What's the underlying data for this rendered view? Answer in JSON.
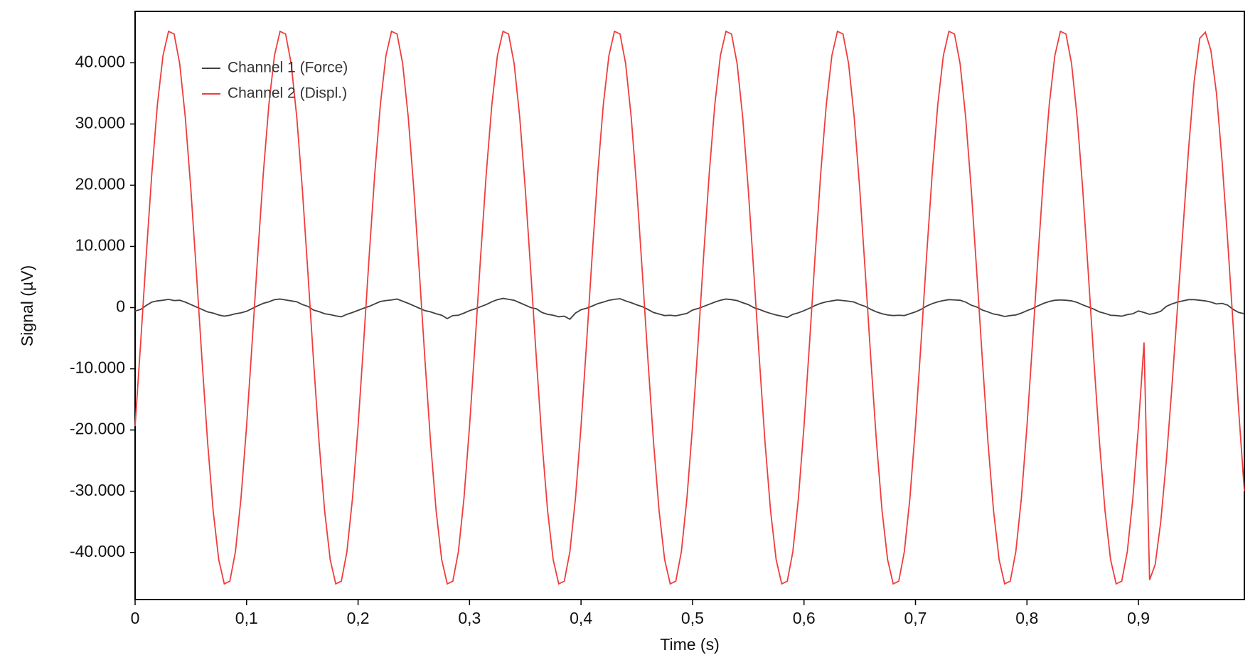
{
  "chart_data": {
    "type": "line",
    "x_label": "Time (s)",
    "y_label": "Signal (µV)",
    "x": [
      0,
      0.005,
      0.01,
      0.015,
      0.02,
      0.025,
      0.03,
      0.035,
      0.04,
      0.045,
      0.05,
      0.055,
      0.06,
      0.065,
      0.07,
      0.075,
      0.08,
      0.085,
      0.09,
      0.095,
      0.1,
      0.105,
      0.11,
      0.115,
      0.12,
      0.125,
      0.13,
      0.135,
      0.14,
      0.145,
      0.15,
      0.155,
      0.16,
      0.165,
      0.17,
      0.175,
      0.18,
      0.185,
      0.19,
      0.195,
      0.2,
      0.205,
      0.21,
      0.215,
      0.22,
      0.225,
      0.23,
      0.235,
      0.24,
      0.245,
      0.25,
      0.255,
      0.26,
      0.265,
      0.27,
      0.275,
      0.28,
      0.285,
      0.29,
      0.295,
      0.3,
      0.305,
      0.31,
      0.315,
      0.32,
      0.325,
      0.33,
      0.335,
      0.34,
      0.345,
      0.35,
      0.355,
      0.36,
      0.365,
      0.37,
      0.375,
      0.38,
      0.385,
      0.39,
      0.395,
      0.4,
      0.405,
      0.41,
      0.415,
      0.42,
      0.425,
      0.43,
      0.435,
      0.44,
      0.445,
      0.45,
      0.455,
      0.46,
      0.465,
      0.47,
      0.475,
      0.48,
      0.485,
      0.49,
      0.495,
      0.5,
      0.505,
      0.51,
      0.515,
      0.52,
      0.525,
      0.53,
      0.535,
      0.54,
      0.545,
      0.55,
      0.555,
      0.56,
      0.565,
      0.57,
      0.575,
      0.58,
      0.585,
      0.59,
      0.595,
      0.6,
      0.605,
      0.61,
      0.615,
      0.62,
      0.625,
      0.63,
      0.635,
      0.64,
      0.645,
      0.65,
      0.655,
      0.66,
      0.665,
      0.67,
      0.675,
      0.68,
      0.685,
      0.69,
      0.695,
      0.7,
      0.705,
      0.71,
      0.715,
      0.72,
      0.725,
      0.73,
      0.735,
      0.74,
      0.745,
      0.75,
      0.755,
      0.76,
      0.765,
      0.77,
      0.775,
      0.78,
      0.785,
      0.79,
      0.795,
      0.8,
      0.805,
      0.81,
      0.815,
      0.82,
      0.825,
      0.83,
      0.835,
      0.84,
      0.845,
      0.85,
      0.855,
      0.86,
      0.865,
      0.87,
      0.875,
      0.88,
      0.885,
      0.89,
      0.895,
      0.9,
      0.905,
      0.91,
      0.915,
      0.92,
      0.925,
      0.93,
      0.935,
      0.94,
      0.945,
      0.95,
      0.955,
      0.96,
      0.965,
      0.97,
      0.975,
      0.98,
      0.985,
      0.99,
      0.995
    ],
    "series": [
      {
        "name": "Channel 1 (Force)",
        "color": "#404040",
        "values": [
          -550,
          -300,
          350,
          900,
          1100,
          1200,
          1350,
          1150,
          1200,
          900,
          500,
          100,
          -300,
          -700,
          -900,
          -1200,
          -1400,
          -1250,
          -1000,
          -850,
          -600,
          -150,
          300,
          700,
          950,
          1300,
          1400,
          1250,
          1100,
          950,
          500,
          200,
          -400,
          -650,
          -1000,
          -1150,
          -1350,
          -1500,
          -1100,
          -800,
          -450,
          -100,
          200,
          600,
          1000,
          1150,
          1250,
          1400,
          1050,
          700,
          300,
          -100,
          -500,
          -700,
          -1000,
          -1250,
          -1800,
          -1300,
          -1250,
          -900,
          -500,
          -200,
          150,
          500,
          950,
          1300,
          1500,
          1350,
          1200,
          800,
          400,
          0,
          -200,
          -800,
          -1100,
          -1250,
          -1500,
          -1400,
          -1900,
          -900,
          -350,
          -100,
          250,
          650,
          900,
          1200,
          1350,
          1450,
          1100,
          800,
          450,
          150,
          -300,
          -800,
          -1050,
          -1300,
          -1250,
          -1350,
          -1150,
          -950,
          -400,
          -150,
          200,
          550,
          900,
          1200,
          1400,
          1300,
          1150,
          800,
          500,
          0,
          -300,
          -650,
          -950,
          -1200,
          -1400,
          -1600,
          -1100,
          -850,
          -500,
          -100,
          350,
          700,
          950,
          1100,
          1250,
          1150,
          1050,
          900,
          500,
          200,
          -300,
          -700,
          -1000,
          -1200,
          -1300,
          -1250,
          -1300,
          -1000,
          -700,
          -300,
          250,
          650,
          950,
          1150,
          1300,
          1250,
          1200,
          900,
          400,
          100,
          -400,
          -700,
          -1050,
          -1200,
          -1450,
          -1300,
          -1200,
          -900,
          -500,
          -150,
          300,
          700,
          1000,
          1200,
          1250,
          1200,
          1100,
          850,
          450,
          100,
          -250,
          -700,
          -950,
          -1250,
          -1300,
          -1400,
          -1150,
          -1000,
          -550,
          -800,
          -1100,
          -900,
          -600,
          200,
          600,
          900,
          1100,
          1300,
          1300,
          1200,
          1100,
          900,
          600,
          700,
          400,
          -300,
          -800,
          -1000
        ]
      },
      {
        "name": "Channel 2 (Displ.)",
        "color": "#f03c3c",
        "values": [
          -19370,
          -5700,
          8530,
          21920,
          33170,
          41170,
          45140,
          44700,
          39870,
          31140,
          19370,
          5700,
          -8530,
          -21920,
          -33170,
          -41170,
          -45140,
          -44700,
          -39870,
          -31140,
          -19370,
          -5700,
          8530,
          21920,
          33170,
          41170,
          45140,
          44700,
          39870,
          31140,
          19370,
          5700,
          -8530,
          -21920,
          -33170,
          -41170,
          -45140,
          -44700,
          -39870,
          -31140,
          -19370,
          -5700,
          8530,
          21920,
          33170,
          41170,
          45140,
          44700,
          39870,
          31140,
          19370,
          5700,
          -8530,
          -21920,
          -33170,
          -41170,
          -45140,
          -44700,
          -39870,
          -31140,
          -19370,
          -5700,
          8530,
          21920,
          33170,
          41170,
          45140,
          44700,
          39870,
          31140,
          19370,
          5700,
          -8530,
          -21920,
          -33170,
          -41170,
          -45140,
          -44700,
          -39870,
          -31140,
          -19370,
          -5700,
          8530,
          21920,
          33170,
          41170,
          45140,
          44700,
          39870,
          31140,
          19370,
          5700,
          -8530,
          -21920,
          -33170,
          -41170,
          -45140,
          -44700,
          -39870,
          -31140,
          -19370,
          -5700,
          8530,
          21920,
          33170,
          41170,
          45140,
          44700,
          39870,
          31140,
          19370,
          5700,
          -8530,
          -21920,
          -33170,
          -41170,
          -45140,
          -44700,
          -39870,
          -31140,
          -19370,
          -5700,
          8530,
          21920,
          33170,
          41170,
          45140,
          44700,
          39870,
          31140,
          19370,
          5700,
          -8530,
          -21920,
          -33170,
          -41170,
          -45140,
          -44700,
          -39870,
          -31140,
          -19370,
          -5700,
          8530,
          21920,
          33170,
          41170,
          45140,
          44700,
          39870,
          31140,
          19370,
          5700,
          -8530,
          -21920,
          -33170,
          -41170,
          -45140,
          -44700,
          -39870,
          -31140,
          -19370,
          -5700,
          8530,
          21920,
          33170,
          41170,
          45140,
          44700,
          39870,
          31140,
          19370,
          5700,
          -8530,
          -21920,
          -33170,
          -41170,
          -45140,
          -44700,
          -39870,
          -31140,
          -19370,
          -5700,
          -44500,
          -42000,
          -35000,
          -25000,
          -13000,
          0,
          13000,
          26000,
          37000,
          44000,
          45000,
          42000,
          35000,
          24000,
          11000,
          -3000,
          -17000,
          -30000
        ]
      }
    ],
    "xlim": [
      0,
      0.995
    ],
    "ylim": [
      -47700,
      48400
    ],
    "xticks": [
      0,
      {
        "value": 0.1,
        "label": "0,1"
      },
      {
        "value": 0.2,
        "label": "0,2"
      },
      {
        "value": 0.3,
        "label": "0,3"
      },
      {
        "value": 0.4,
        "label": "0,4"
      },
      {
        "value": 0.5,
        "label": "0,5"
      },
      {
        "value": 0.6,
        "label": "0,6"
      },
      {
        "value": 0.7,
        "label": "0,7"
      },
      {
        "value": 0.8,
        "label": "0,8"
      },
      {
        "value": 0.9,
        "label": "0,9"
      }
    ],
    "yticks": [
      {
        "value": -40000,
        "label": "-40.000"
      },
      {
        "value": -30000,
        "label": "-30.000"
      },
      {
        "value": -20000,
        "label": "-20.000"
      },
      {
        "value": -10000,
        "label": "-10.000"
      },
      0,
      {
        "value": 10000,
        "label": "10.000"
      },
      {
        "value": 20000,
        "label": "20.000"
      },
      {
        "value": 30000,
        "label": "30.000"
      },
      {
        "value": 40000,
        "label": "40.000"
      }
    ],
    "legend": "upper-left",
    "grid": false
  }
}
